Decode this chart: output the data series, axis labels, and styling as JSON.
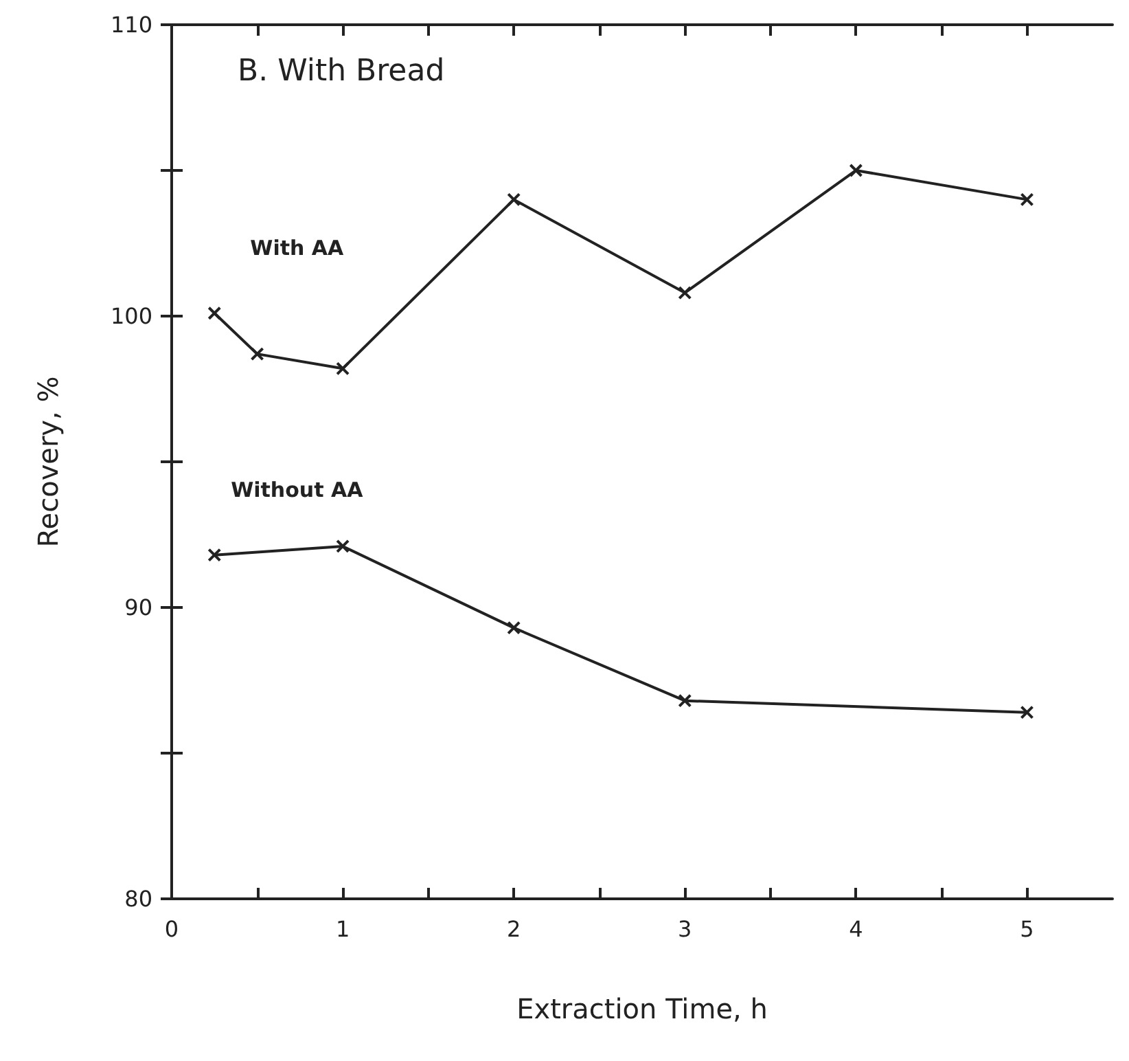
{
  "chart_data": {
    "type": "line",
    "title": "B. With Bread",
    "xlabel": "Extraction Time, h",
    "ylabel": "Recovery, %",
    "xlim": [
      0,
      5.5
    ],
    "xticks": [
      0,
      {
        "value": 0.5,
        "label": null
      },
      1,
      {
        "value": 1.5,
        "label": null
      },
      2,
      {
        "value": 2.5,
        "label": null
      },
      3,
      {
        "value": 3.5,
        "label": null
      },
      4,
      {
        "value": 4.5,
        "label": null
      },
      5
    ],
    "ylim": [
      80,
      110
    ],
    "yticks": [
      80,
      {
        "value": 85,
        "label": null
      },
      90,
      {
        "value": 95,
        "label": null
      },
      100,
      {
        "value": 105,
        "label": null
      },
      110
    ],
    "grid": false,
    "legend": false,
    "marker": "cross",
    "line_style": "solid",
    "series": [
      {
        "name": "With AA",
        "color": "#222222",
        "x": [
          0.25,
          0.5,
          1,
          2,
          3,
          4,
          5
        ],
        "values": [
          100.1,
          98.7,
          98.2,
          104.0,
          100.8,
          105.0,
          104.0
        ]
      },
      {
        "name": "Without AA",
        "color": "#222222",
        "x": [
          0.25,
          1,
          2,
          3,
          5
        ],
        "values": [
          91.8,
          92.1,
          89.3,
          86.8,
          86.4
        ]
      }
    ]
  }
}
